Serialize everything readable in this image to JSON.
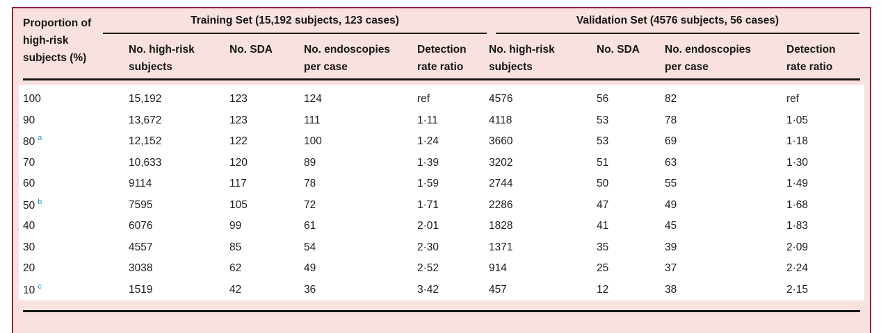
{
  "colors": {
    "panel_background": "#f8e1de",
    "panel_border": "#9b1f40",
    "rule": "#161616",
    "superscript_teal": "#2b9dbe",
    "body_background": "#ffffff"
  },
  "table": {
    "row_header": {
      "line1": "Proportion of",
      "line2": "high-risk",
      "line3": "subjects (%)"
    },
    "groups": [
      {
        "title": "Training Set (15,192 subjects, 123 cases)",
        "columns": [
          {
            "line1": "No. high-risk",
            "line2": "subjects"
          },
          {
            "line1": "No. SDA",
            "line2": ""
          },
          {
            "line1": "No. endoscopies",
            "line2": "per case"
          },
          {
            "line1": "Detection",
            "line2": "rate ratio"
          }
        ]
      },
      {
        "title": "Validation Set (4576 subjects, 56 cases)",
        "columns": [
          {
            "line1": "No. high-risk",
            "line2": "subjects"
          },
          {
            "line1": "No. SDA",
            "line2": ""
          },
          {
            "line1": "No. endoscopies",
            "line2": "per case"
          },
          {
            "line1": "Detection",
            "line2": "rate ratio"
          }
        ]
      }
    ],
    "rows": [
      {
        "label": "100",
        "sup": "",
        "values": [
          "15,192",
          "123",
          "124",
          "ref",
          "4576",
          "56",
          "82",
          "ref"
        ]
      },
      {
        "label": "90",
        "sup": "",
        "values": [
          "13,672",
          "123",
          "111",
          "1·11",
          "4118",
          "53",
          "78",
          "1·05"
        ]
      },
      {
        "label": "80",
        "sup": "a",
        "values": [
          "12,152",
          "122",
          "100",
          "1·24",
          "3660",
          "53",
          "69",
          "1·18"
        ]
      },
      {
        "label": "70",
        "sup": "",
        "values": [
          "10,633",
          "120",
          "89",
          "1·39",
          "3202",
          "51",
          "63",
          "1·30"
        ]
      },
      {
        "label": "60",
        "sup": "",
        "values": [
          "9114",
          "117",
          "78",
          "1·59",
          "2744",
          "50",
          "55",
          "1·49"
        ]
      },
      {
        "label": "50",
        "sup": "b",
        "values": [
          "7595",
          "105",
          "72",
          "1·71",
          "2286",
          "47",
          "49",
          "1·68"
        ]
      },
      {
        "label": "40",
        "sup": "",
        "values": [
          "6076",
          "99",
          "61",
          "2·01",
          "1828",
          "41",
          "45",
          "1·83"
        ]
      },
      {
        "label": "30",
        "sup": "",
        "values": [
          "4557",
          "85",
          "54",
          "2·30",
          "1371",
          "35",
          "39",
          "2·09"
        ]
      },
      {
        "label": "20",
        "sup": "",
        "values": [
          "3038",
          "62",
          "49",
          "2·52",
          "914",
          "25",
          "37",
          "2·24"
        ]
      },
      {
        "label": "10",
        "sup": "c",
        "values": [
          "1519",
          "42",
          "36",
          "3·42",
          "457",
          "12",
          "38",
          "2·15"
        ]
      }
    ]
  }
}
